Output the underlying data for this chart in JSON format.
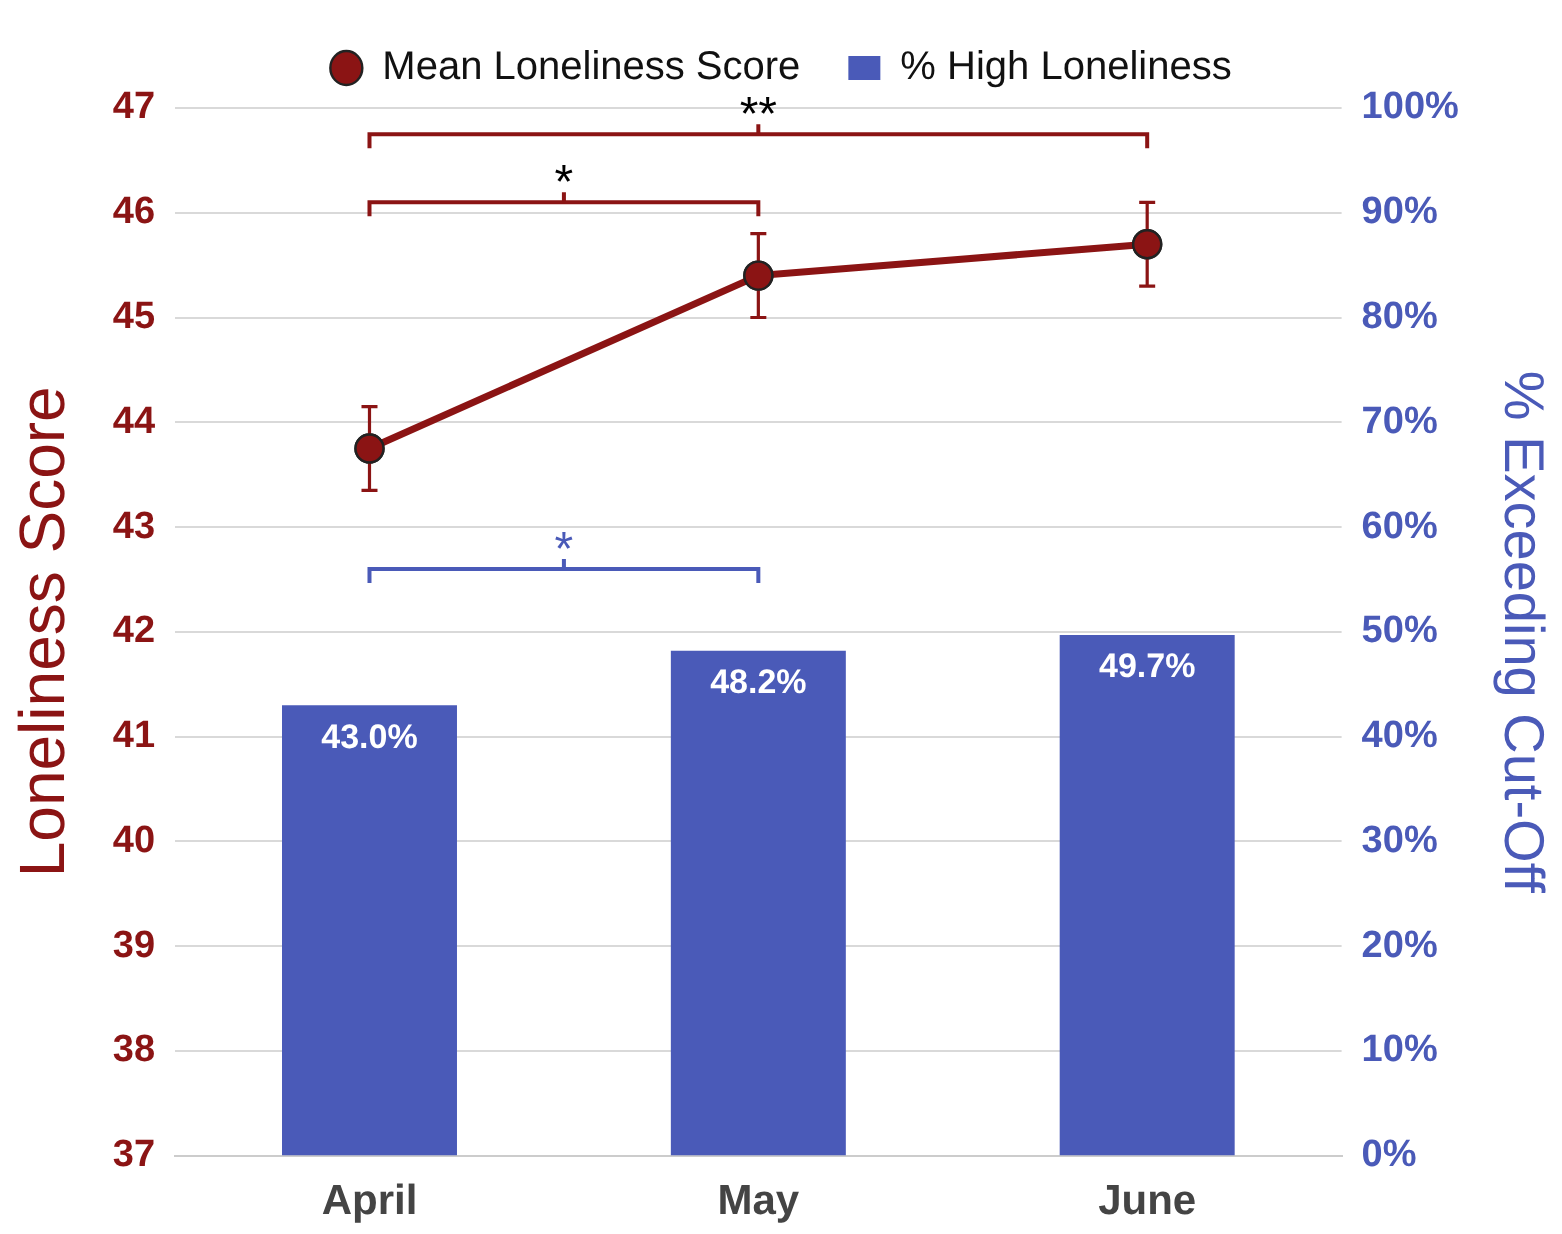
{
  "chart_data": {
    "type": "line",
    "categories": [
      "April",
      "May",
      "June"
    ],
    "series": [
      {
        "name": "Mean Loneliness Score",
        "color": "#8b1414",
        "values": [
          43.75,
          45.4,
          45.7
        ],
        "errors": [
          0.4,
          0.4,
          0.4
        ]
      },
      {
        "name": "% High Loneliness",
        "type": "bar",
        "axis": "y2",
        "color": "#4a5ab8",
        "values": [
          43.0,
          48.2,
          49.7
        ],
        "value_labels": [
          "43.0%",
          "48.2%",
          "49.7%"
        ]
      }
    ],
    "ylabel": "Loneliness Score",
    "y2label": "% Exceeding Cut-Off",
    "ylim": [
      37,
      47
    ],
    "yticks": [
      37,
      38,
      39,
      40,
      41,
      42,
      43,
      44,
      45,
      46,
      47
    ],
    "y2lim": [
      0,
      100
    ],
    "y2ticks": [
      {
        "value": 0,
        "label": "0%"
      },
      {
        "value": 10,
        "label": "10%"
      },
      {
        "value": 20,
        "label": "20%"
      },
      {
        "value": 30,
        "label": "30%"
      },
      {
        "value": 40,
        "label": "40%"
      },
      {
        "value": 50,
        "label": "50%"
      },
      {
        "value": 60,
        "label": "60%"
      },
      {
        "value": 70,
        "label": "70%"
      },
      {
        "value": 80,
        "label": "80%"
      },
      {
        "value": 90,
        "label": "90%"
      },
      {
        "value": 100,
        "label": "100%"
      }
    ],
    "annotations": [
      "**",
      "*",
      "*"
    ],
    "grid": "y",
    "legend": "top",
    "marker": "circle",
    "line_style": "solid"
  }
}
